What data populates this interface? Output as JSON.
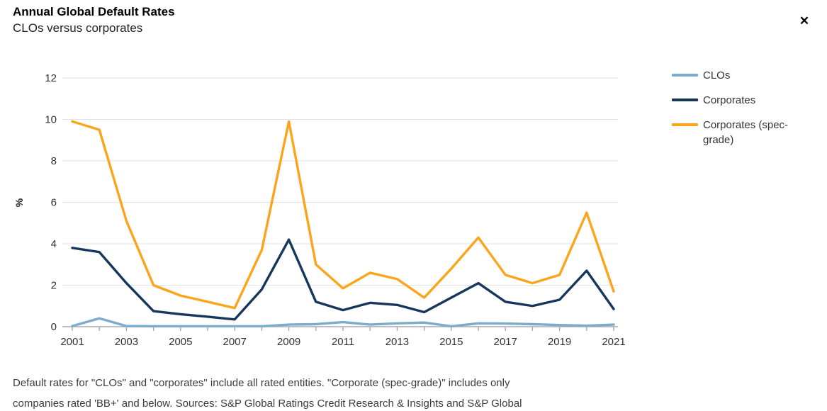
{
  "header": {
    "title": "Annual Global Default Rates",
    "subtitle": "CLOs versus corporates"
  },
  "close": {
    "glyph": "✕"
  },
  "legend": {
    "items": [
      {
        "label": "CLOs"
      },
      {
        "label": "Corporates"
      },
      {
        "label": "Corporates (spec-grade)"
      }
    ]
  },
  "chart_data": {
    "type": "line",
    "title": "Annual Global Default Rates",
    "subtitle": "CLOs versus corporates",
    "ylabel": "%",
    "xlabel": "",
    "ylim": [
      0,
      12
    ],
    "yticks": [
      0,
      2,
      4,
      6,
      8,
      10,
      12
    ],
    "x": [
      2001,
      2002,
      2003,
      2004,
      2005,
      2006,
      2007,
      2008,
      2009,
      2010,
      2011,
      2012,
      2013,
      2014,
      2015,
      2016,
      2017,
      2018,
      2019,
      2020,
      2021
    ],
    "xtick_labels": [
      "2001",
      "2003",
      "2005",
      "2007",
      "2009",
      "2011",
      "2013",
      "2015",
      "2017",
      "2019",
      "2021"
    ],
    "grid": true,
    "legend_position": "right",
    "series": [
      {
        "name": "CLOs",
        "color": "#7BACCC",
        "values": [
          0.03,
          0.4,
          0.03,
          0.02,
          0.02,
          0.02,
          0.02,
          0.02,
          0.1,
          0.12,
          0.22,
          0.1,
          0.16,
          0.2,
          0.02,
          0.16,
          0.15,
          0.12,
          0.08,
          0.05,
          0.1
        ]
      },
      {
        "name": "Corporates",
        "color": "#16365C",
        "values": [
          3.8,
          3.6,
          2.1,
          0.75,
          0.6,
          0.48,
          0.35,
          1.8,
          4.2,
          1.2,
          0.8,
          1.15,
          1.05,
          0.7,
          1.4,
          2.1,
          1.2,
          1.0,
          1.3,
          2.7,
          0.85
        ]
      },
      {
        "name": "Corporates (spec-grade)",
        "color": "#FCA41B",
        "values": [
          9.9,
          9.5,
          5.1,
          2.0,
          1.5,
          1.2,
          0.9,
          3.7,
          9.9,
          3.0,
          1.85,
          2.6,
          2.3,
          1.4,
          2.8,
          4.3,
          2.5,
          2.1,
          2.5,
          5.5,
          1.7
        ]
      }
    ]
  },
  "footnote": {
    "line1": "Default rates for \"CLOs\" and \"corporates\" include all rated entities. \"Corporate (spec-grade)\" includes only",
    "line2": "companies rated 'BB+' and below. Sources: S&P Global Ratings Credit Research & Insights and S&P Global"
  }
}
